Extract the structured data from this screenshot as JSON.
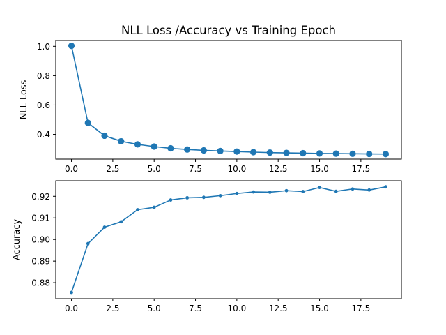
{
  "figure_title": "NLL Loss /Accuracy vs Training Epoch",
  "colors": {
    "series": "#1f77b4",
    "axis": "#000000",
    "background": "#ffffff"
  },
  "chart_data": [
    {
      "type": "line",
      "title": "NLL Loss /Accuracy vs Training Epoch",
      "xlabel": "",
      "ylabel": "NLL Loss",
      "marker": "large-circle",
      "xlim": [
        -0.95,
        19.95
      ],
      "ylim": [
        0.2315,
        1.0395
      ],
      "xticks": [
        0.0,
        2.5,
        5.0,
        7.5,
        10.0,
        12.5,
        15.0,
        17.5
      ],
      "xtick_labels": [
        "0.0",
        "2.5",
        "5.0",
        "7.5",
        "10.0",
        "12.5",
        "15.0",
        "17.5"
      ],
      "yticks": [
        0.4,
        0.6,
        0.8,
        1.0
      ],
      "ytick_labels": [
        "0.4",
        "0.6",
        "0.8",
        "1.0"
      ],
      "x": [
        0,
        1,
        2,
        3,
        4,
        5,
        6,
        7,
        8,
        9,
        10,
        11,
        12,
        13,
        14,
        15,
        16,
        17,
        18,
        19
      ],
      "values": [
        1.003,
        0.478,
        0.391,
        0.353,
        0.332,
        0.317,
        0.305,
        0.297,
        0.291,
        0.287,
        0.283,
        0.279,
        0.276,
        0.274,
        0.272,
        0.27,
        0.269,
        0.268,
        0.267,
        0.266
      ]
    },
    {
      "type": "line",
      "title": "",
      "xlabel": "",
      "ylabel": "Accuracy",
      "marker": "small-dot",
      "xlim": [
        -0.95,
        19.95
      ],
      "ylim": [
        0.8726,
        0.9272
      ],
      "xticks": [
        0.0,
        2.5,
        5.0,
        7.5,
        10.0,
        12.5,
        15.0,
        17.5
      ],
      "xtick_labels": [
        "0.0",
        "2.5",
        "5.0",
        "7.5",
        "10.0",
        "12.5",
        "15.0",
        "17.5"
      ],
      "yticks": [
        0.88,
        0.89,
        0.9,
        0.91,
        0.92
      ],
      "ytick_labels": [
        "0.88",
        "0.89",
        "0.90",
        "0.91",
        "0.92"
      ],
      "x": [
        0,
        1,
        2,
        3,
        4,
        5,
        6,
        7,
        8,
        9,
        10,
        11,
        12,
        13,
        14,
        15,
        16,
        17,
        18,
        19
      ],
      "values": [
        0.8755,
        0.8981,
        0.9057,
        0.9082,
        0.9138,
        0.9149,
        0.9183,
        0.9193,
        0.9195,
        0.9203,
        0.9213,
        0.922,
        0.9219,
        0.9226,
        0.9222,
        0.9241,
        0.9223,
        0.9234,
        0.9229,
        0.9244
      ]
    }
  ]
}
